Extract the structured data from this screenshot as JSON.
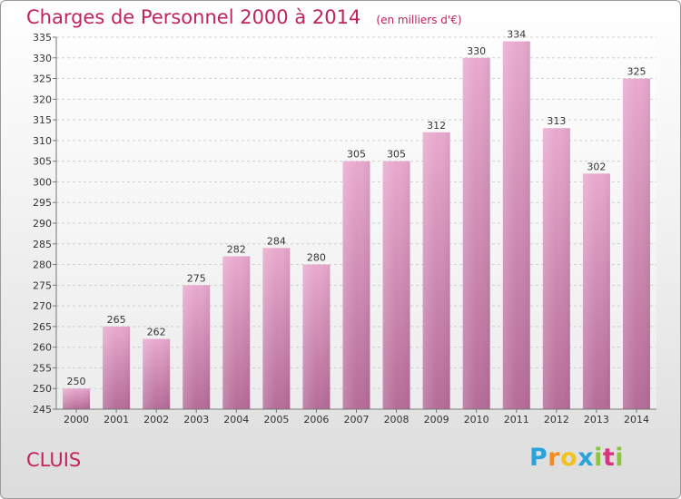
{
  "chart_data": {
    "type": "bar",
    "title": "Charges de Personnel 2000 à 2014",
    "subtitle": "(en milliers d'€)",
    "xlabel": "",
    "ylabel": "",
    "categories": [
      "2000",
      "2001",
      "2002",
      "2003",
      "2004",
      "2005",
      "2006",
      "2007",
      "2008",
      "2009",
      "2010",
      "2011",
      "2012",
      "2013",
      "2014"
    ],
    "values": [
      250,
      265,
      262,
      275,
      282,
      284,
      280,
      305,
      305,
      312,
      330,
      334,
      313,
      302,
      325
    ],
    "ylim": [
      245,
      335
    ],
    "ytick_step": 5,
    "grid": true,
    "legend": "none"
  },
  "place": "CLUIS",
  "logo": {
    "letters": [
      "P",
      "r",
      "o",
      "x",
      "i",
      "t",
      "i"
    ],
    "colors": [
      "#2aa2dc",
      "#f28c1e",
      "#f2c21e",
      "#2aa2dc",
      "#8bc53f",
      "#d8337e",
      "#8bc53f"
    ]
  },
  "colors": {
    "title": "#c0235e",
    "bar_top": "#e8a9ce",
    "bar_bottom": "#b56c98",
    "grid": "#d0d0d0"
  }
}
